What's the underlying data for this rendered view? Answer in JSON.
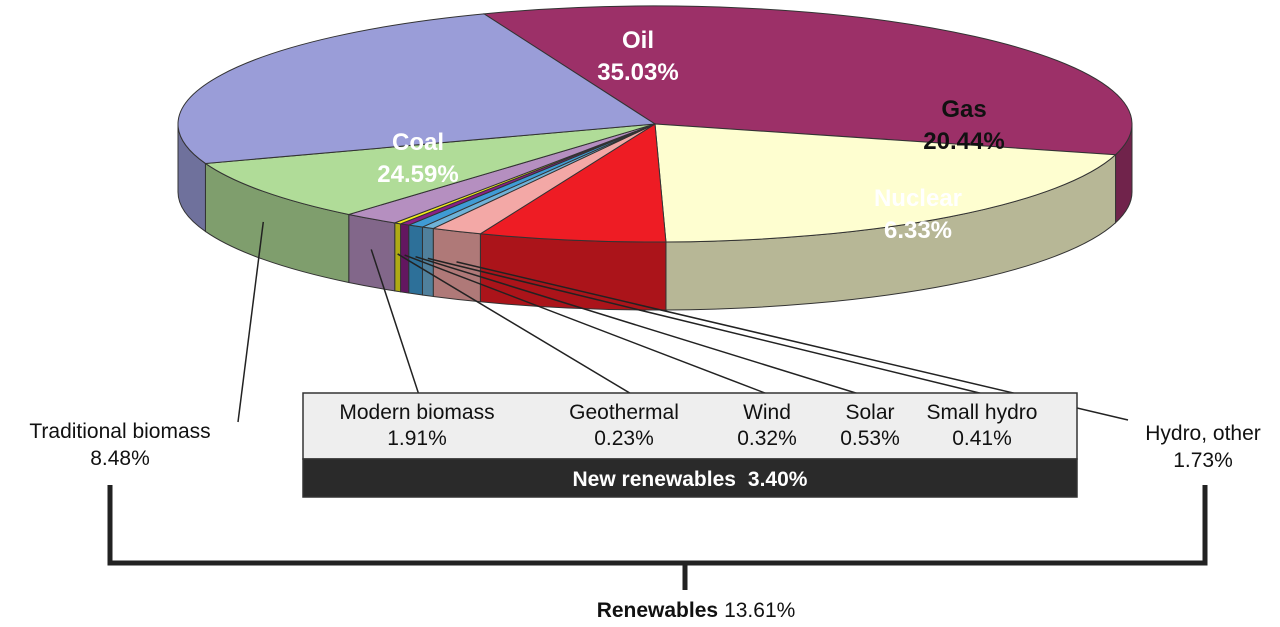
{
  "chart_data": {
    "type": "pie",
    "title": "",
    "slices": [
      {
        "name": "Oil",
        "value": 35.03,
        "display": "35.03%",
        "color": "#9c3068"
      },
      {
        "name": "Gas",
        "value": 20.44,
        "display": "20.44%",
        "color": "#fefed0"
      },
      {
        "name": "Nuclear",
        "value": 6.33,
        "display": "6.33%",
        "color": "#ee1c24"
      },
      {
        "name": "Hydro, other",
        "value": 1.73,
        "display": "1.73%",
        "color": "#f3a8a6"
      },
      {
        "name": "Small hydro",
        "value": 0.41,
        "display": "0.41%",
        "color": "#6fb2d8"
      },
      {
        "name": "Solar",
        "value": 0.53,
        "display": "0.53%",
        "color": "#3f9bd5"
      },
      {
        "name": "Wind",
        "value": 0.32,
        "display": "0.32%",
        "color": "#8a1f86"
      },
      {
        "name": "Geothermal",
        "value": 0.23,
        "display": "0.23%",
        "color": "#f3ec1c"
      },
      {
        "name": "Modern biomass",
        "value": 1.91,
        "display": "1.91%",
        "color": "#b58fc0"
      },
      {
        "name": "Traditional biomass",
        "value": 8.48,
        "display": "8.48%",
        "color": "#b0dc98"
      },
      {
        "name": "Coal",
        "value": 24.59,
        "display": "24.59%",
        "color": "#9a9dd8"
      }
    ],
    "new_renewables": {
      "label": "New renewables",
      "value": "3.40%"
    },
    "renewables_total": {
      "label": "Renewables",
      "value": "13.61%"
    }
  }
}
